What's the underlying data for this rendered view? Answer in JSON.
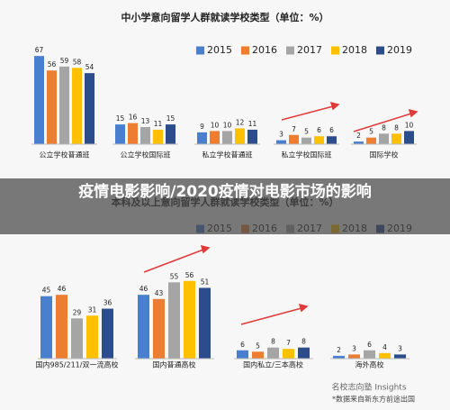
{
  "chart_data": [
    {
      "type": "bar",
      "title": "中小学意向留学人群就读学校类型（单位：%）",
      "categories": [
        "公立学校普通班",
        "公立学校国际班",
        "私立学校普通班",
        "私立学校国际班",
        "国际学校"
      ],
      "series": [
        {
          "name": "2015",
          "color": "#4a7fd0",
          "values": [
            67,
            15,
            9,
            3,
            2
          ]
        },
        {
          "name": "2016",
          "color": "#ed7d31",
          "values": [
            56,
            16,
            10,
            7,
            5
          ]
        },
        {
          "name": "2017",
          "color": "#a5a5a5",
          "values": [
            59,
            13,
            10,
            5,
            8
          ]
        },
        {
          "name": "2018",
          "color": "#ffc000",
          "values": [
            58,
            11,
            12,
            6,
            8
          ]
        },
        {
          "name": "2019",
          "color": "#2c4c8c",
          "values": [
            54,
            15,
            11,
            6,
            10
          ]
        }
      ]
    },
    {
      "type": "bar",
      "title": "本科及以上意向留学人群就读学校类型（单位：%）",
      "categories": [
        "国内985/211/双一流高校",
        "国内普通高校",
        "国内私立/三本高校",
        "海外高校"
      ],
      "series": [
        {
          "name": "2015",
          "color": "#4a7fd0",
          "values": [
            45,
            46,
            6,
            2
          ]
        },
        {
          "name": "2016",
          "color": "#ed7d31",
          "values": [
            46,
            43,
            5,
            3
          ]
        },
        {
          "name": "2017",
          "color": "#a5a5a5",
          "values": [
            29,
            55,
            8,
            6
          ]
        },
        {
          "name": "2018",
          "color": "#ffc000",
          "values": [
            31,
            56,
            7,
            4
          ]
        },
        {
          "name": "2019",
          "color": "#2c4c8c",
          "values": [
            36,
            51,
            8,
            3
          ]
        }
      ]
    }
  ],
  "overlay": {
    "title": "疫情电影影响/2020疫情对电影市场的影响"
  },
  "watermark": {
    "brand": "名校志向塾 Insights",
    "source": "*数据来自新东方前途出国"
  }
}
